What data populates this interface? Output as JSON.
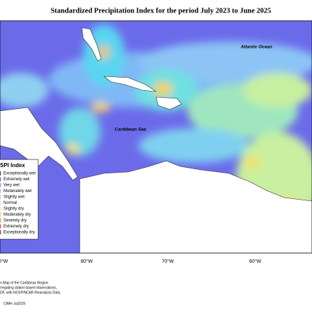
{
  "title": "Standardized Precipitation Index for the period July 2023 to June 2025",
  "labels": {
    "ocean": "Atlantic Ocean",
    "sea": "Caribbean Sea"
  },
  "legend": {
    "title": "SPI Index",
    "items": [
      "Exceptionally wet",
      "Extremely wet",
      "Very wet",
      "Moderately wet",
      "Slightly wet",
      "Normal",
      "Slightly dry",
      "Moderately dry",
      "Severely dry",
      "Extremely dry",
      "Exceptionally dry"
    ]
  },
  "longitudes": [
    "0°W",
    "80°W",
    "70°W",
    "60°W"
  ],
  "credits": [
    "n Map of the Caribbean Region",
    "rregating station based observations,",
    "DF, with NCEP/NCAR Reanalysis Data.",
    "CIMH Jul2025"
  ]
}
